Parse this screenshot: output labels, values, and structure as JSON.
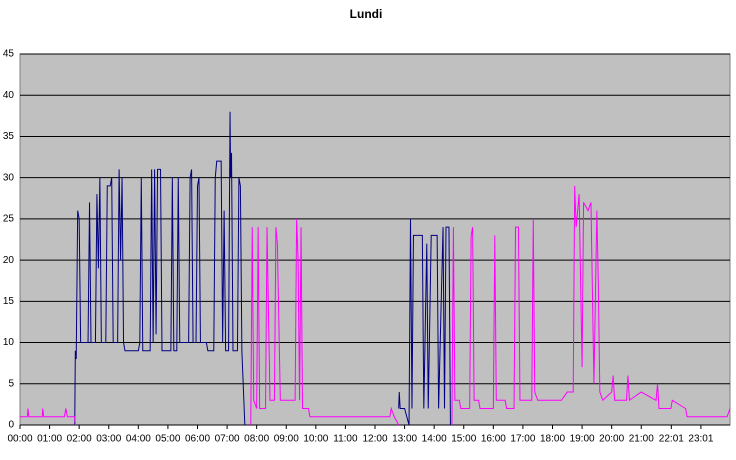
{
  "chart_data": {
    "type": "line",
    "title": "Lundi",
    "xlim": [
      0,
      24
    ],
    "xticks": [
      {
        "value": 0,
        "label": "00:00"
      },
      {
        "value": 1,
        "label": "01:00"
      },
      {
        "value": 2,
        "label": "02:00"
      },
      {
        "value": 3,
        "label": "03:00"
      },
      {
        "value": 4,
        "label": "04:00"
      },
      {
        "value": 5,
        "label": "05:00"
      },
      {
        "value": 6,
        "label": "06:00"
      },
      {
        "value": 7,
        "label": "07:00"
      },
      {
        "value": 8,
        "label": "08:00"
      },
      {
        "value": 9,
        "label": "09:00"
      },
      {
        "value": 10,
        "label": "10:00"
      },
      {
        "value": 11,
        "label": "11:00"
      },
      {
        "value": 12,
        "label": "12:00"
      },
      {
        "value": 13,
        "label": "13:00"
      },
      {
        "value": 14,
        "label": "14:00"
      },
      {
        "value": 15,
        "label": "15:00"
      },
      {
        "value": 16,
        "label": "16:00"
      },
      {
        "value": 17,
        "label": "17:00"
      },
      {
        "value": 18,
        "label": "18:00"
      },
      {
        "value": 19,
        "label": "19:00"
      },
      {
        "value": 20,
        "label": "20:00"
      },
      {
        "value": 21,
        "label": "21:00"
      },
      {
        "value": 22.0167,
        "label": "22:01"
      },
      {
        "value": 23.0167,
        "label": "23:01"
      }
    ],
    "ylim": [
      0,
      45
    ],
    "yticks": [
      0,
      5,
      10,
      15,
      20,
      25,
      30,
      35,
      40,
      45
    ],
    "grid": true,
    "series": [
      {
        "color": "#000080",
        "x": [
          1.85,
          1.87,
          1.9,
          1.95,
          2.0,
          2.05,
          2.3,
          2.35,
          2.4,
          2.55,
          2.6,
          2.65,
          2.7,
          2.75,
          2.9,
          2.95,
          3.05,
          3.1,
          3.15,
          3.3,
          3.35,
          3.4,
          3.45,
          3.5,
          3.55,
          4.0,
          4.05,
          4.1,
          4.15,
          4.4,
          4.45,
          4.5,
          4.55,
          4.6,
          4.65,
          4.75,
          4.8,
          5.1,
          5.15,
          5.2,
          5.3,
          5.35,
          5.4,
          5.7,
          5.75,
          5.8,
          5.85,
          5.95,
          6.0,
          6.05,
          6.1,
          6.3,
          6.35,
          6.55,
          6.6,
          6.65,
          6.8,
          6.85,
          6.9,
          6.95,
          7.05,
          7.1,
          7.12,
          7.15,
          7.2,
          7.35,
          7.4,
          7.45,
          7.5,
          7.6,
          10,
          12.8,
          12.82,
          12.85,
          13.0,
          13.15,
          13.2,
          13.25,
          13.3,
          13.6,
          13.65,
          13.75,
          13.8,
          13.9,
          14.1,
          14.15,
          14.3,
          14.35,
          14.4,
          14.5,
          14.55
        ],
        "values": [
          0,
          9,
          8,
          26,
          25,
          10,
          10,
          27,
          10,
          10,
          28,
          19,
          30,
          10,
          10,
          29,
          29,
          30,
          10,
          10,
          31,
          20,
          30,
          10,
          9,
          9,
          10,
          30,
          9,
          9,
          31,
          10,
          31,
          11,
          31,
          31,
          9,
          9,
          30,
          9,
          9,
          30,
          10,
          10,
          30,
          31,
          10,
          10,
          29,
          30,
          10,
          10,
          9,
          9,
          30,
          32,
          32,
          10,
          26,
          9,
          9,
          38,
          30,
          33,
          9,
          9,
          30,
          29,
          9,
          0,
          null,
          2,
          4,
          2,
          2,
          0,
          25,
          2,
          23,
          23,
          2,
          22,
          2,
          23,
          23,
          2,
          24,
          2,
          24,
          24,
          0
        ]
      },
      {
        "color": "#ff00ff",
        "x": [
          0,
          0.25,
          0.27,
          0.3,
          0.75,
          0.77,
          0.8,
          1.5,
          1.55,
          1.6,
          1.85,
          1.87,
          5,
          7.8,
          7.85,
          7.9,
          8.0,
          8.05,
          8.1,
          8.3,
          8.35,
          8.45,
          8.6,
          8.65,
          8.7,
          8.8,
          9.0,
          9.3,
          9.35,
          9.4,
          9.45,
          9.5,
          9.55,
          9.75,
          9.8,
          12.5,
          12.55,
          12.65,
          12.8,
          13.5,
          14.6,
          14.65,
          14.7,
          14.85,
          14.9,
          15.2,
          15.25,
          15.3,
          15.35,
          15.5,
          15.55,
          16.0,
          16.05,
          16.1,
          16.4,
          16.45,
          16.7,
          16.75,
          16.85,
          16.9,
          17.3,
          17.35,
          17.4,
          17.5,
          18.3,
          18.5,
          18.7,
          18.75,
          18.8,
          18.9,
          19.0,
          19.05,
          19.2,
          19.3,
          19.4,
          19.5,
          19.55,
          19.6,
          19.7,
          20.0,
          20.05,
          20.1,
          20.5,
          20.55,
          20.6,
          21.0,
          21.5,
          21.55,
          21.6,
          22.0,
          22.05,
          22.5,
          22.55,
          23.9,
          24
        ],
        "values": [
          1,
          1,
          2,
          1,
          1,
          2,
          1,
          1,
          2,
          1,
          1,
          0,
          null,
          0,
          24,
          3,
          2,
          24,
          2,
          2,
          24,
          3,
          3,
          24,
          22,
          3,
          3,
          3,
          25,
          20,
          3,
          24,
          2,
          2,
          1,
          1,
          2,
          1,
          0,
          null,
          0,
          24,
          3,
          3,
          2,
          2,
          23,
          24,
          3,
          3,
          2,
          2,
          23,
          3,
          3,
          2,
          2,
          24,
          24,
          3,
          3,
          25,
          4,
          3,
          3,
          4,
          4,
          29,
          24,
          28,
          7,
          27,
          26,
          27,
          5,
          26,
          17,
          4,
          3,
          4,
          6,
          3,
          3,
          6,
          3,
          4,
          3,
          5,
          2,
          2,
          3,
          2,
          1,
          1,
          2
        ]
      }
    ]
  }
}
